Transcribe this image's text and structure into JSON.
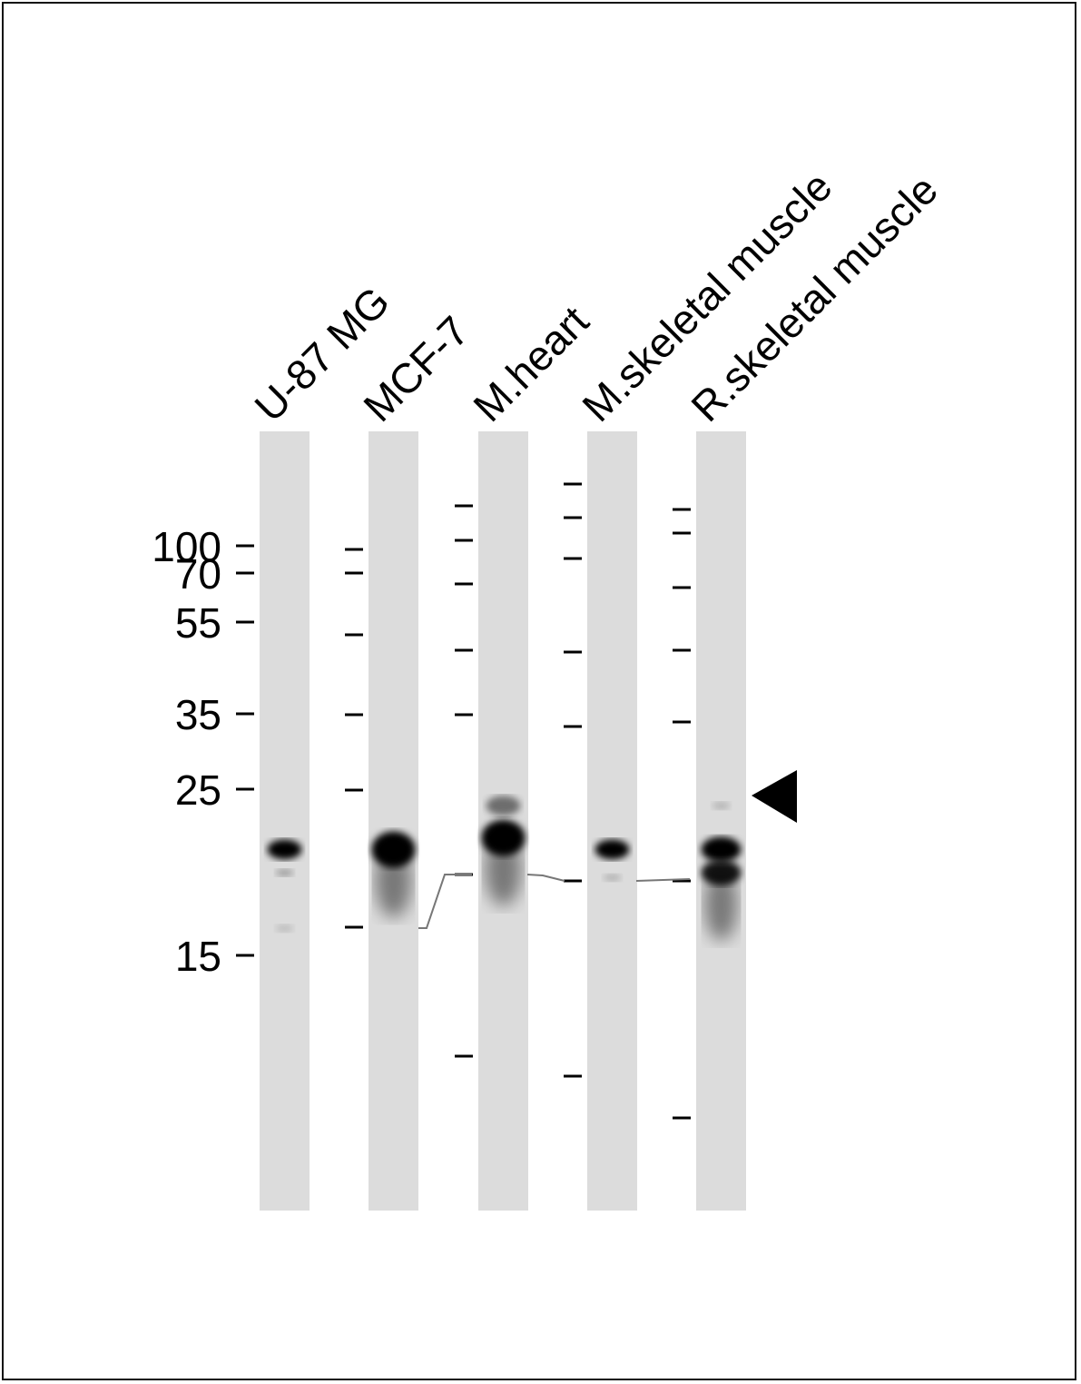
{
  "lanes": [
    {
      "label": "U-87 MG",
      "markers": [
        100,
        70,
        55,
        35,
        25,
        15
      ],
      "bands": [
        {
          "kda": 24.5,
          "intensity": 1.0,
          "size": "small"
        },
        {
          "kda": 22,
          "intensity": 0.3,
          "size": "tiny"
        },
        {
          "kda": 17,
          "intensity": 0.15,
          "size": "tiny"
        }
      ]
    },
    {
      "label": "MCF-7",
      "bands": [
        {
          "kda": 24.5,
          "intensity": 1.0,
          "size": "large",
          "smear": true
        }
      ]
    },
    {
      "label": "M.heart",
      "bands": [
        {
          "kda": 30,
          "intensity": 0.5,
          "size": "small"
        },
        {
          "kda": 25,
          "intensity": 1.0,
          "size": "large",
          "smear": true
        }
      ]
    },
    {
      "label": "M.skeletal muscle",
      "bands": [
        {
          "kda": 24.5,
          "intensity": 1.0,
          "size": "small"
        },
        {
          "kda": 21.5,
          "intensity": 0.2,
          "size": "tiny"
        }
      ]
    },
    {
      "label": "R.skeletal muscle",
      "bands": [
        {
          "kda": 30,
          "intensity": 0.2,
          "size": "tiny"
        },
        {
          "kda": 24.5,
          "intensity": 1.0,
          "size": "medium"
        },
        {
          "kda": 22,
          "intensity": 0.9,
          "size": "medium",
          "smear": true
        }
      ]
    }
  ],
  "marker_labels": [
    "100",
    "70",
    "55",
    "35",
    "25",
    "15"
  ],
  "arrow": "target-band-arrow",
  "colors": {
    "lane": "#dcdcdc",
    "band": "#000000",
    "border": "#111111"
  }
}
